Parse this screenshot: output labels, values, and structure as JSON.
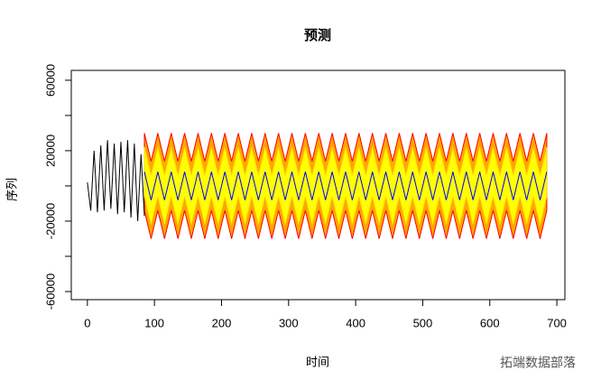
{
  "chart_data": {
    "type": "line",
    "title": "预测",
    "xlabel": "时间",
    "ylabel": "序列",
    "watermark": "拓端数据部落",
    "xlim": [
      -24,
      712
    ],
    "ylim": [
      -64600,
      65600
    ],
    "xticks": [
      0,
      100,
      200,
      300,
      400,
      500,
      600,
      700
    ],
    "yticks": [
      {
        "value": -60000,
        "label": "-60000"
      },
      {
        "value": -40000,
        "label": null
      },
      {
        "value": -20000,
        "label": "-20000"
      },
      {
        "value": 0,
        "label": null
      },
      {
        "value": 20000,
        "label": "20000"
      },
      {
        "value": 40000,
        "label": null
      },
      {
        "value": 60000,
        "label": "60000"
      }
    ],
    "forecast_x": [
      85,
      95,
      105,
      115,
      125,
      135,
      145,
      155,
      165,
      175,
      185,
      195,
      205,
      215,
      225,
      235,
      245,
      255,
      265,
      275,
      285,
      295,
      305,
      315,
      325,
      335,
      345,
      355,
      365,
      375,
      385,
      395,
      405,
      415,
      425,
      435,
      445,
      455,
      465,
      475,
      485,
      495,
      505,
      515,
      525,
      535,
      545,
      555,
      565,
      575,
      585,
      595,
      605,
      615,
      625,
      635,
      645,
      655,
      665,
      675,
      685
    ],
    "bands": [
      {
        "color": "#ffa500",
        "stroke": "#ff0000",
        "upper": [
          30000,
          14000,
          30000,
          14000,
          30000,
          14000,
          30000,
          14000,
          30000,
          14000,
          30000,
          14000,
          30000,
          14000,
          30000,
          14000,
          30000,
          14000,
          30000,
          14000,
          30000,
          14000,
          30000,
          14000,
          30000,
          14000,
          30000,
          14000,
          30000,
          14000,
          30000,
          14000,
          30000,
          14000,
          30000,
          14000,
          30000,
          14000,
          30000,
          14000,
          30000,
          14000,
          30000,
          14000,
          30000,
          14000,
          30000,
          14000,
          30000,
          14000,
          30000,
          14000,
          30000,
          14000,
          30000,
          14000,
          30000,
          14000,
          30000,
          14000,
          30000
        ],
        "lower": [
          -14000,
          -30000,
          -14000,
          -30000,
          -14000,
          -30000,
          -14000,
          -30000,
          -14000,
          -30000,
          -14000,
          -30000,
          -14000,
          -30000,
          -14000,
          -30000,
          -14000,
          -30000,
          -14000,
          -30000,
          -14000,
          -30000,
          -14000,
          -30000,
          -14000,
          -30000,
          -14000,
          -30000,
          -14000,
          -30000,
          -14000,
          -30000,
          -14000,
          -30000,
          -14000,
          -30000,
          -14000,
          -30000,
          -14000,
          -30000,
          -14000,
          -30000,
          -14000,
          -30000,
          -14000,
          -30000,
          -14000,
          -30000,
          -14000,
          -30000,
          -14000,
          -30000,
          -14000,
          -30000,
          -14000,
          -30000,
          -14000,
          -30000,
          -14000,
          -30000,
          -14000
        ]
      },
      {
        "color": "#ffff00",
        "stroke": "#ffd700",
        "upper": [
          22000,
          6000,
          22000,
          6000,
          22000,
          6000,
          22000,
          6000,
          22000,
          6000,
          22000,
          6000,
          22000,
          6000,
          22000,
          6000,
          22000,
          6000,
          22000,
          6000,
          22000,
          6000,
          22000,
          6000,
          22000,
          6000,
          22000,
          6000,
          22000,
          6000,
          22000,
          6000,
          22000,
          6000,
          22000,
          6000,
          22000,
          6000,
          22000,
          6000,
          22000,
          6000,
          22000,
          6000,
          22000,
          6000,
          22000,
          6000,
          22000,
          6000,
          22000,
          6000,
          22000,
          6000,
          22000,
          6000,
          22000,
          6000,
          22000,
          6000,
          22000
        ],
        "lower": [
          -6000,
          -22000,
          -6000,
          -22000,
          -6000,
          -22000,
          -6000,
          -22000,
          -6000,
          -22000,
          -6000,
          -22000,
          -6000,
          -22000,
          -6000,
          -22000,
          -6000,
          -22000,
          -6000,
          -22000,
          -6000,
          -22000,
          -6000,
          -22000,
          -6000,
          -22000,
          -6000,
          -22000,
          -6000,
          -22000,
          -6000,
          -22000,
          -6000,
          -22000,
          -6000,
          -22000,
          -6000,
          -22000,
          -6000,
          -22000,
          -6000,
          -22000,
          -6000,
          -22000,
          -6000,
          -22000,
          -6000,
          -22000,
          -6000,
          -22000,
          -6000,
          -22000,
          -6000,
          -22000,
          -6000,
          -22000,
          -6000,
          -22000,
          -6000,
          -22000,
          -6000
        ]
      }
    ],
    "series": [
      {
        "color": "#000000",
        "x": [
          0,
          5,
          10,
          15,
          20,
          25,
          30,
          35,
          40,
          45,
          50,
          55,
          60,
          65,
          70,
          75,
          80,
          85
        ],
        "values": [
          2000,
          -14000,
          20000,
          -15000,
          23000,
          -14000,
          26000,
          -13000,
          24000,
          -16000,
          25000,
          -15000,
          26000,
          -18000,
          24000,
          -20000,
          18000,
          -17000
        ]
      },
      {
        "color": "#0000ff",
        "x": "forecast_x",
        "values": [
          8000,
          -8000,
          8000,
          -8000,
          8000,
          -8000,
          8000,
          -8000,
          8000,
          -8000,
          8000,
          -8000,
          8000,
          -8000,
          8000,
          -8000,
          8000,
          -8000,
          8000,
          -8000,
          8000,
          -8000,
          8000,
          -8000,
          8000,
          -8000,
          8000,
          -8000,
          8000,
          -8000,
          8000,
          -8000,
          8000,
          -8000,
          8000,
          -8000,
          8000,
          -8000,
          8000,
          -8000,
          8000,
          -8000,
          8000,
          -8000,
          8000,
          -8000,
          8000,
          -8000,
          8000,
          -8000,
          8000,
          -8000,
          8000,
          -8000,
          8000,
          -8000,
          8000,
          -8000,
          8000,
          -8000,
          8000
        ]
      }
    ]
  }
}
